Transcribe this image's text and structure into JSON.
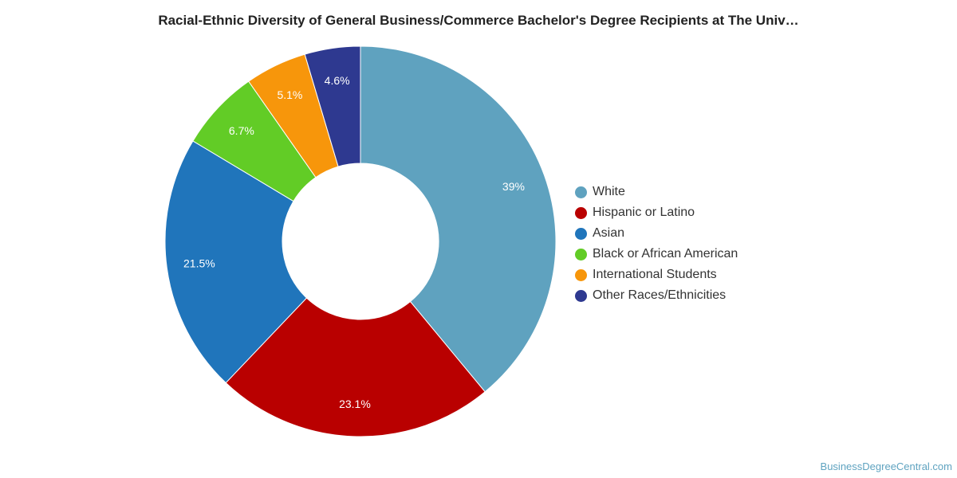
{
  "chart_data": {
    "type": "pie",
    "variant": "donut",
    "title": "Racial-Ethnic Diversity of General Business/Commerce Bachelor's Degree Recipients at The Univ…",
    "legend_position": "right",
    "slices": [
      {
        "name": "White",
        "value": 39.0,
        "label": "39%",
        "color": "#5fa2bf"
      },
      {
        "name": "Hispanic or Latino",
        "value": 23.1,
        "label": "23.1%",
        "color": "#b90000"
      },
      {
        "name": "Asian",
        "value": 21.5,
        "label": "21.5%",
        "color": "#2075bb"
      },
      {
        "name": "Black or African American",
        "value": 6.7,
        "label": "6.7%",
        "color": "#62cc26"
      },
      {
        "name": "International Students",
        "value": 5.1,
        "label": "5.1%",
        "color": "#f7960b"
      },
      {
        "name": "Other Races/Ethnicities",
        "value": 4.6,
        "label": "4.6%",
        "color": "#2e3990"
      }
    ]
  },
  "source": "BusinessDegreeCentral.com"
}
